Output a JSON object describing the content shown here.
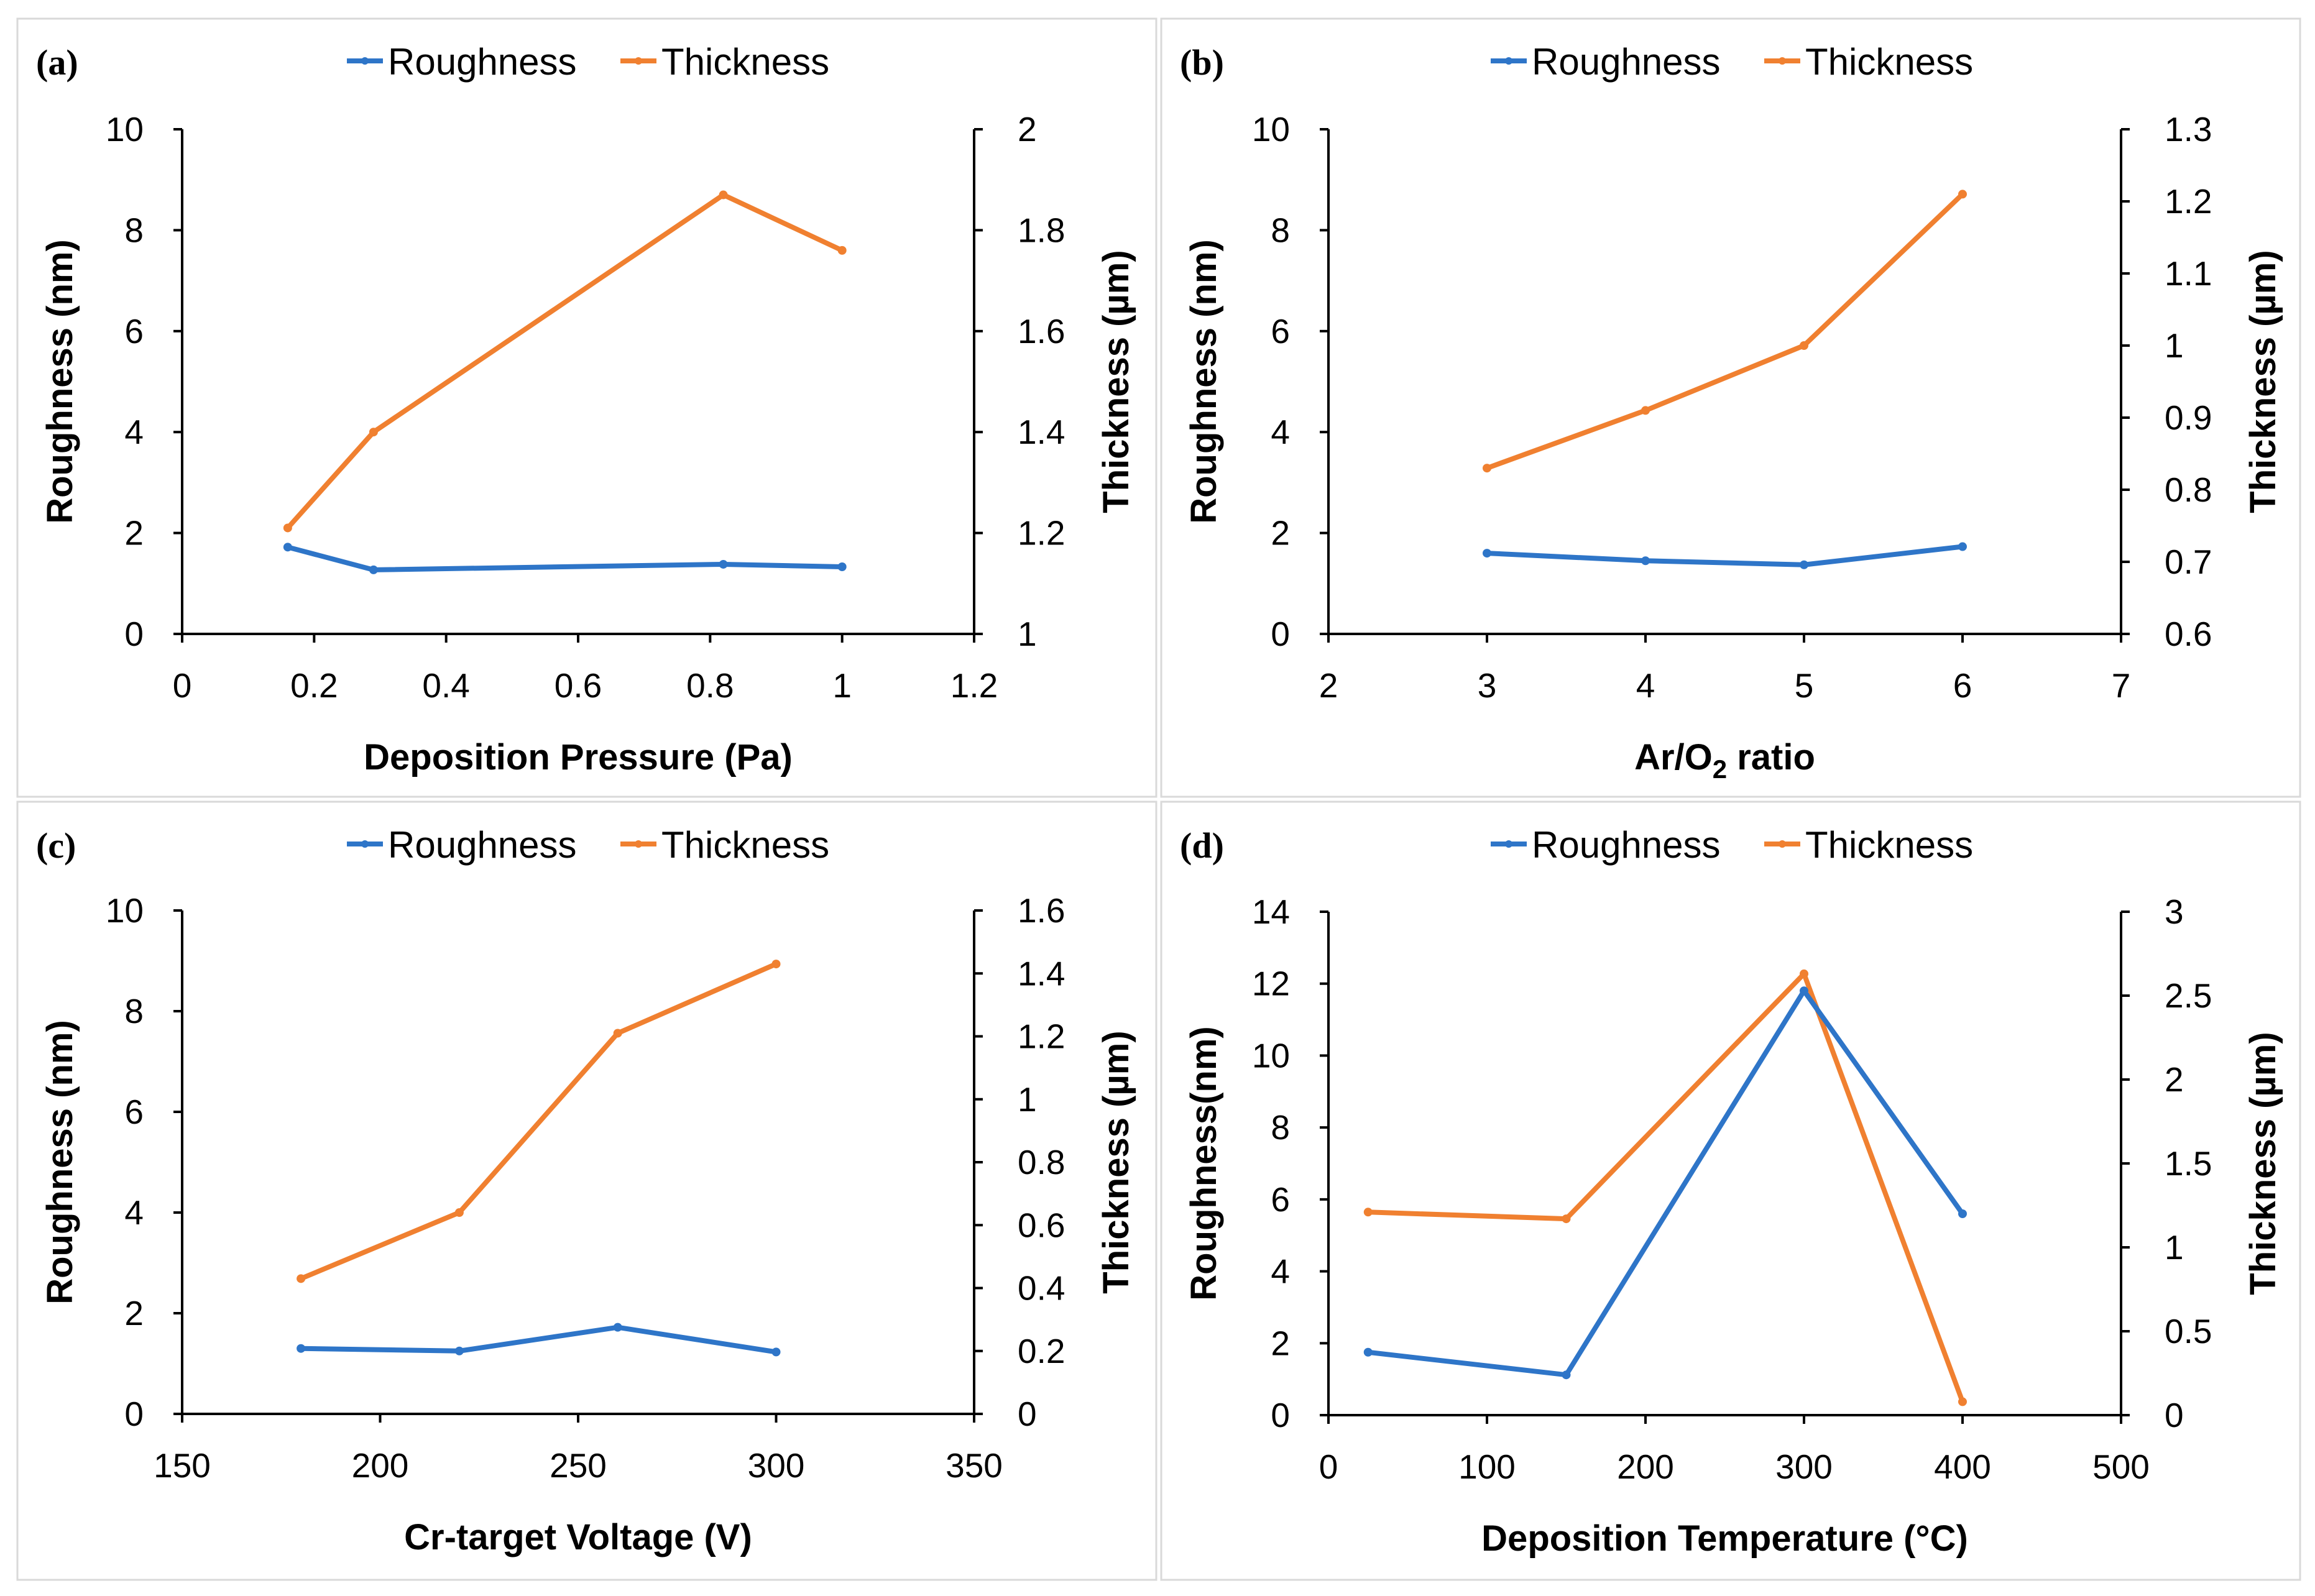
{
  "colors": {
    "roughness": "#2e75c8",
    "thickness": "#f08030"
  },
  "chart_data": [
    {
      "type": "line",
      "panel_label": "(a)",
      "legend": [
        "Roughness",
        "Thickness"
      ],
      "xlabel": "Deposition Pressure (Pa)",
      "xlabel_sub": "",
      "xlabel_suffix": "",
      "ylabel": "Roughness (nm)",
      "y2label": "Thickness (µm)",
      "xlim": [
        0,
        1.2
      ],
      "xticks": [
        "0",
        "0.2",
        "0.4",
        "0.6",
        "0.8",
        "1",
        "1.2"
      ],
      "xstep": 0.2,
      "ylim": [
        0,
        10
      ],
      "yticks": [
        "0",
        "2",
        "4",
        "6",
        "8",
        "10"
      ],
      "ystep": 2,
      "y2lim": [
        1,
        2
      ],
      "y2ticks": [
        "1",
        "1.2",
        "1.4",
        "1.6",
        "1.8",
        "2"
      ],
      "y2step": 0.2,
      "series": [
        {
          "name": "Roughness",
          "axis": "left",
          "x": [
            0.16,
            0.29,
            0.82,
            1.0
          ],
          "values": [
            1.72,
            1.27,
            1.38,
            1.33
          ]
        },
        {
          "name": "Thickness",
          "axis": "right",
          "x": [
            0.16,
            0.29,
            0.82,
            1.0
          ],
          "values": [
            1.21,
            1.4,
            1.87,
            1.76
          ]
        }
      ]
    },
    {
      "type": "line",
      "panel_label": "(b)",
      "legend": [
        "Roughness",
        "Thickness"
      ],
      "xlabel": "Ar/O",
      "xlabel_sub": "2",
      "xlabel_suffix": " ratio",
      "ylabel": "Roughness (nm)",
      "y2label": "Thickness (µm)",
      "xlim": [
        2,
        7
      ],
      "xticks": [
        "2",
        "3",
        "4",
        "5",
        "6",
        "7"
      ],
      "xstep": 1,
      "ylim": [
        0,
        10
      ],
      "yticks": [
        "0",
        "2",
        "4",
        "6",
        "8",
        "10"
      ],
      "ystep": 2,
      "y2lim": [
        0.6,
        1.3
      ],
      "y2ticks": [
        "0.6",
        "0.7",
        "0.8",
        "0.9",
        "1",
        "1.1",
        "1.2",
        "1.3"
      ],
      "y2step": 0.1,
      "series": [
        {
          "name": "Roughness",
          "axis": "left",
          "x": [
            3,
            4,
            5,
            6
          ],
          "values": [
            1.6,
            1.45,
            1.37,
            1.73
          ]
        },
        {
          "name": "Thickness",
          "axis": "right",
          "x": [
            3,
            4,
            5,
            6
          ],
          "values": [
            0.83,
            0.91,
            1.0,
            1.21
          ]
        }
      ]
    },
    {
      "type": "line",
      "panel_label": "(c)",
      "legend": [
        "Roughness",
        "Thickness"
      ],
      "xlabel": "Cr-target Voltage (V)",
      "xlabel_sub": "",
      "xlabel_suffix": "",
      "ylabel": "Roughness (nm)",
      "y2label": "Thickness (µm)",
      "xlim": [
        150,
        350
      ],
      "xticks": [
        "150",
        "200",
        "250",
        "300",
        "350"
      ],
      "xstep": 50,
      "ylim": [
        0,
        10
      ],
      "yticks": [
        "0",
        "2",
        "4",
        "6",
        "8",
        "10"
      ],
      "ystep": 2,
      "y2lim": [
        0,
        1.6
      ],
      "y2ticks": [
        "0",
        "0.2",
        "0.4",
        "0.6",
        "0.8",
        "1",
        "1.2",
        "1.4",
        "1.6"
      ],
      "y2step": 0.2,
      "series": [
        {
          "name": "Roughness",
          "axis": "left",
          "x": [
            180,
            220,
            260,
            300
          ],
          "values": [
            1.3,
            1.25,
            1.72,
            1.23
          ]
        },
        {
          "name": "Thickness",
          "axis": "right",
          "x": [
            180,
            220,
            260,
            300
          ],
          "values": [
            0.43,
            0.64,
            1.21,
            1.43
          ]
        }
      ]
    },
    {
      "type": "line",
      "panel_label": "(d)",
      "legend": [
        "Roughness",
        "Thickness"
      ],
      "xlabel": "Deposition Temperature (°C)",
      "xlabel_sub": "",
      "xlabel_suffix": "",
      "ylabel": "Roughness(nm)",
      "y2label": "Thickness (µm)",
      "xlim": [
        0,
        500
      ],
      "xticks": [
        "0",
        "100",
        "200",
        "300",
        "400",
        "500"
      ],
      "xstep": 100,
      "ylim": [
        0,
        14
      ],
      "yticks": [
        "0",
        "2",
        "4",
        "6",
        "8",
        "10",
        "12",
        "14"
      ],
      "ystep": 2,
      "y2lim": [
        0,
        3
      ],
      "y2ticks": [
        "0",
        "0.5",
        "1",
        "1.5",
        "2",
        "2.5",
        "3"
      ],
      "y2step": 0.5,
      "series": [
        {
          "name": "Roughness",
          "axis": "left",
          "x": [
            25,
            150,
            300,
            400
          ],
          "values": [
            1.75,
            1.12,
            11.8,
            5.6
          ]
        },
        {
          "name": "Thickness",
          "axis": "right",
          "x": [
            25,
            150,
            300,
            400
          ],
          "values": [
            1.21,
            1.17,
            2.63,
            0.08
          ]
        }
      ]
    }
  ]
}
